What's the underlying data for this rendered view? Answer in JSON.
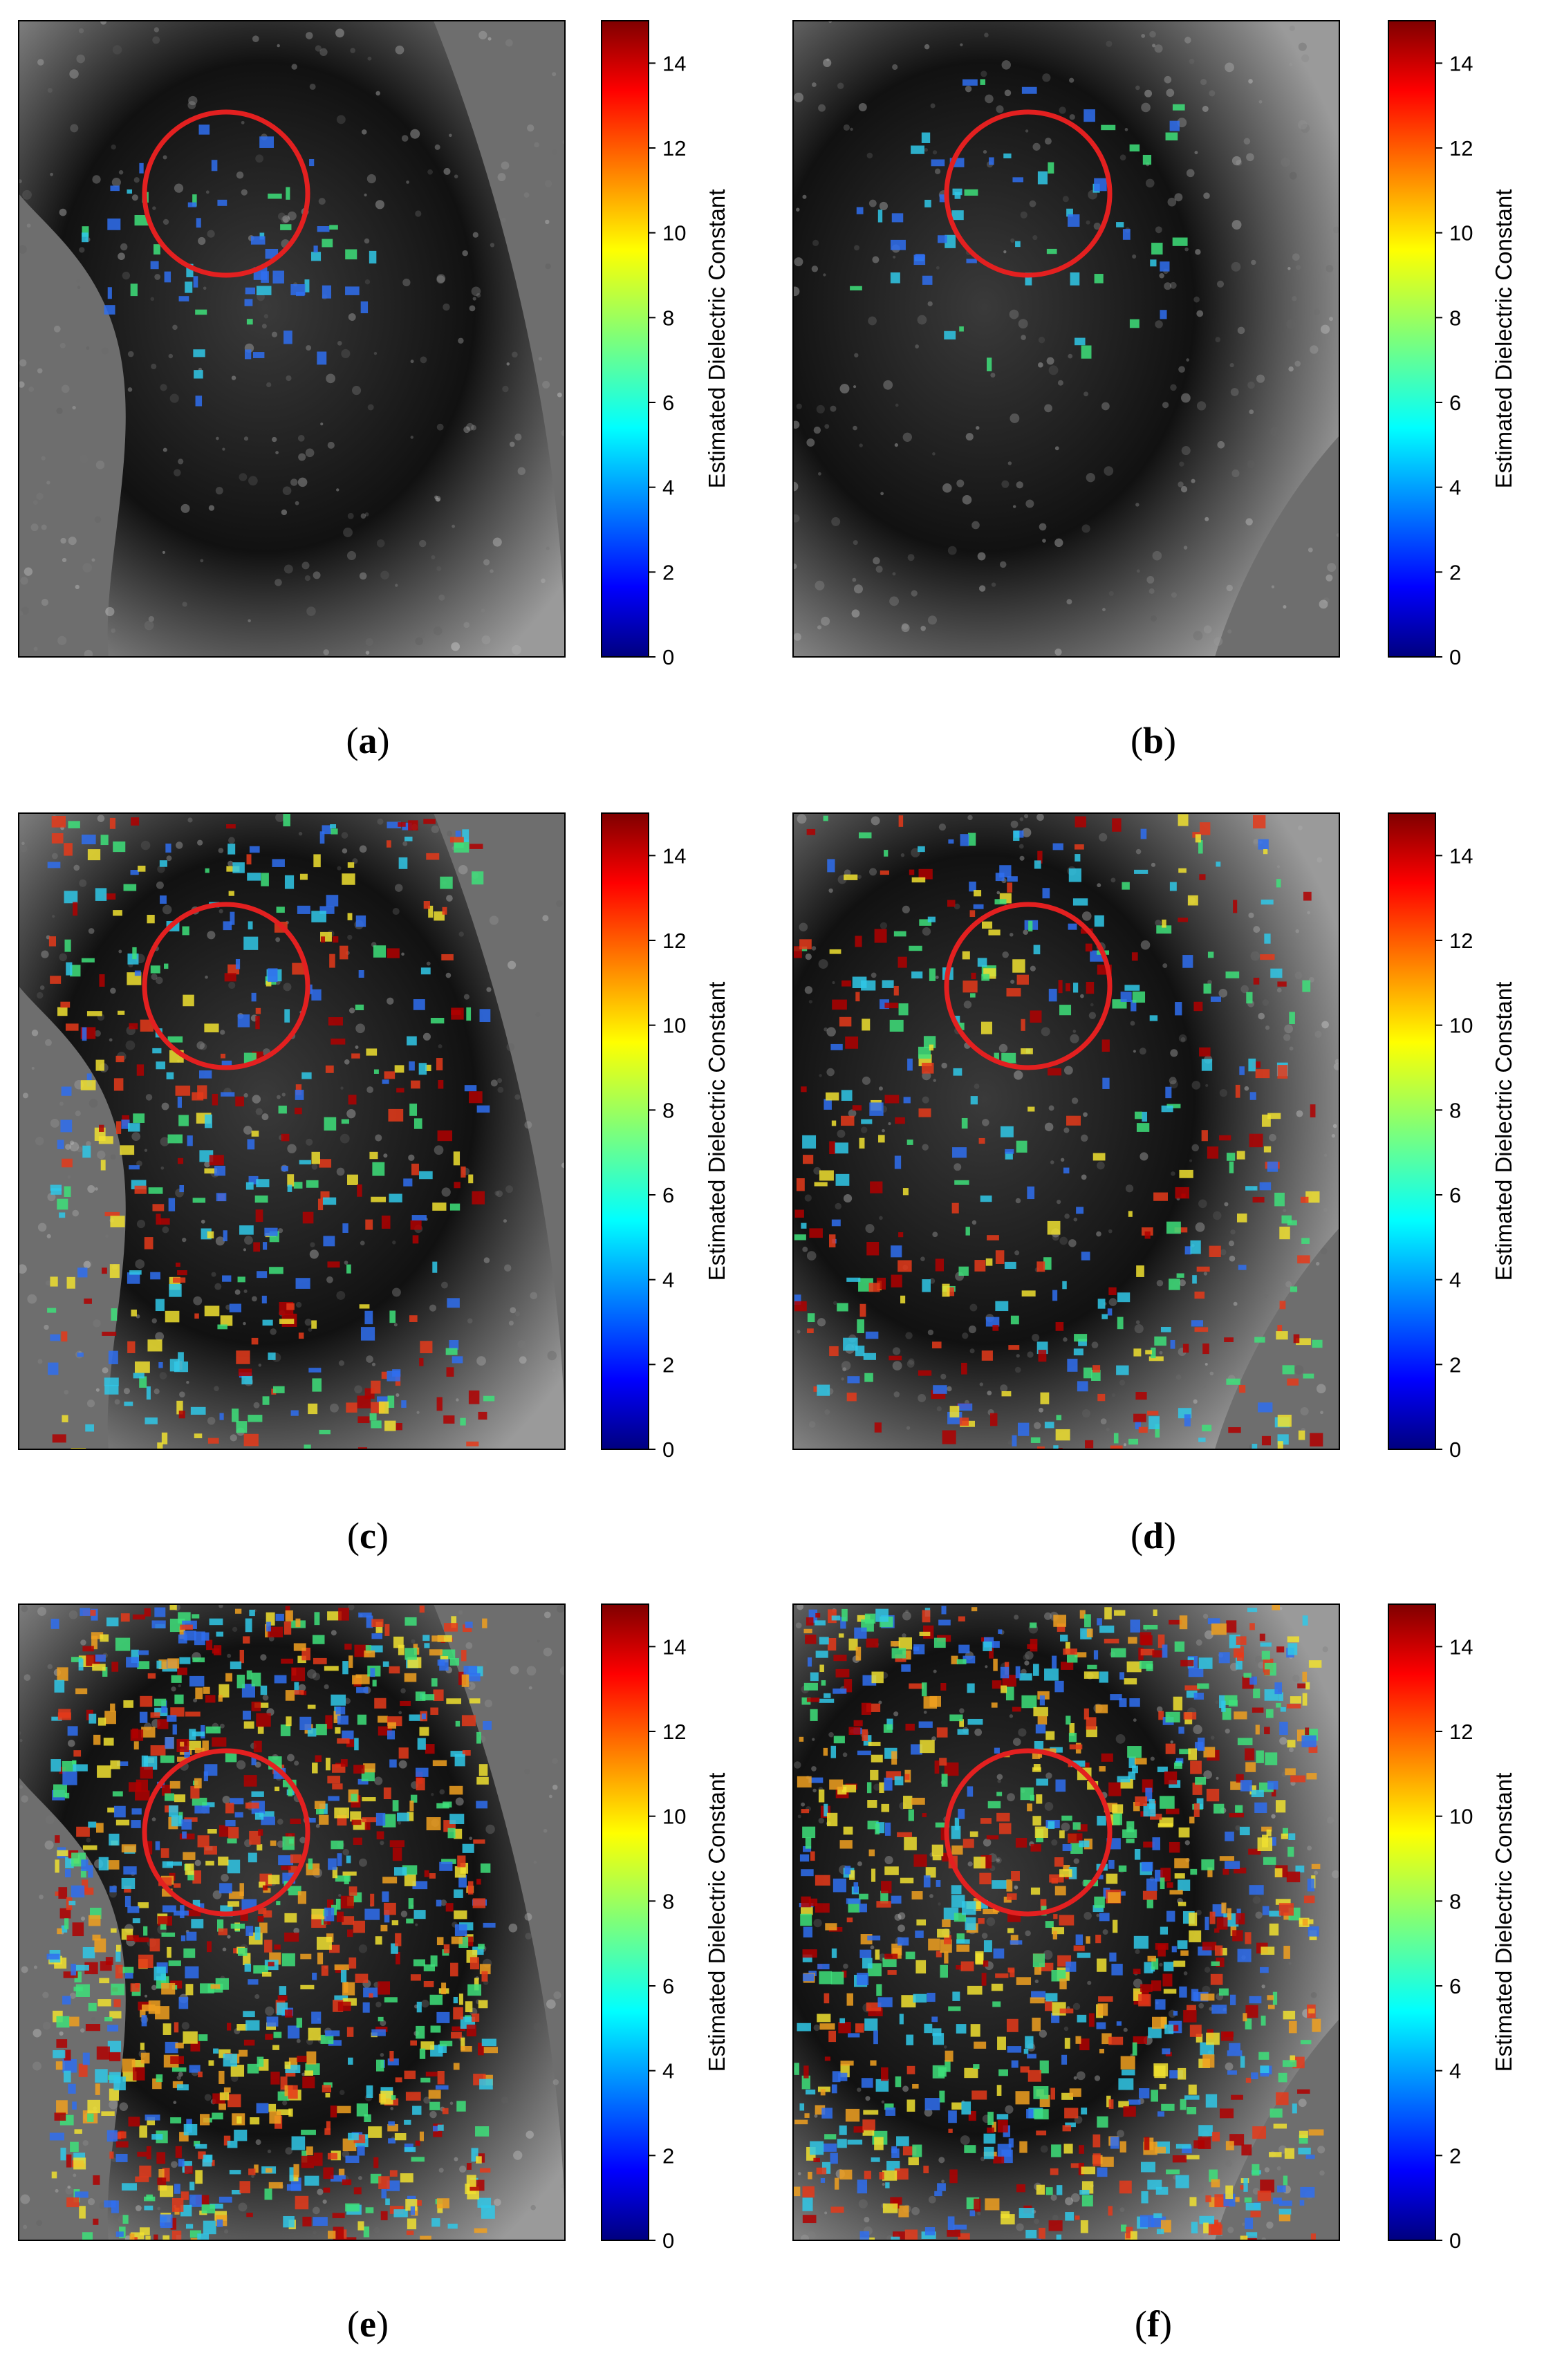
{
  "figure": {
    "colorbar": {
      "label": "Estimated Dielectric Constant",
      "ticks": [
        "0",
        "2",
        "4",
        "6",
        "8",
        "10",
        "12",
        "14"
      ],
      "tick_values": [
        0,
        2,
        4,
        6,
        8,
        10,
        12,
        14
      ],
      "range": [
        0,
        15
      ],
      "colormap": "jet"
    },
    "panels": [
      {
        "id": "a",
        "label": "a",
        "variant": "left",
        "coverage": "sparse",
        "colors": {
          "blue": "#2f6ff0",
          "cyan": "#30c8e8",
          "green": "#3ee07a"
        }
      },
      {
        "id": "b",
        "label": "b",
        "variant": "right",
        "coverage": "sparse",
        "colors": {
          "blue": "#2f6ff0",
          "cyan": "#30c8e8",
          "green": "#3ee07a"
        }
      },
      {
        "id": "c",
        "label": "c",
        "variant": "left",
        "coverage": "medium",
        "colors": {
          "blue": "#2f6ff0",
          "cyan": "#30c8e8",
          "green": "#3ee07a"
        }
      },
      {
        "id": "d",
        "label": "d",
        "variant": "right",
        "coverage": "medium",
        "colors": {
          "blue": "#2f6ff0",
          "cyan": "#30c8e8",
          "green": "#3ee07a"
        }
      },
      {
        "id": "e",
        "label": "e",
        "variant": "left",
        "coverage": "dense",
        "colors": {
          "blue": "#2f6ff0",
          "cyan": "#30c8e8",
          "green": "#3ee07a"
        }
      },
      {
        "id": "f",
        "label": "f",
        "variant": "right",
        "coverage": "dense",
        "colors": {
          "blue": "#2f6ff0",
          "cyan": "#30c8e8",
          "green": "#3ee07a"
        }
      }
    ],
    "marker_color": "#e32020",
    "background_gray": "#6e6e6e"
  }
}
